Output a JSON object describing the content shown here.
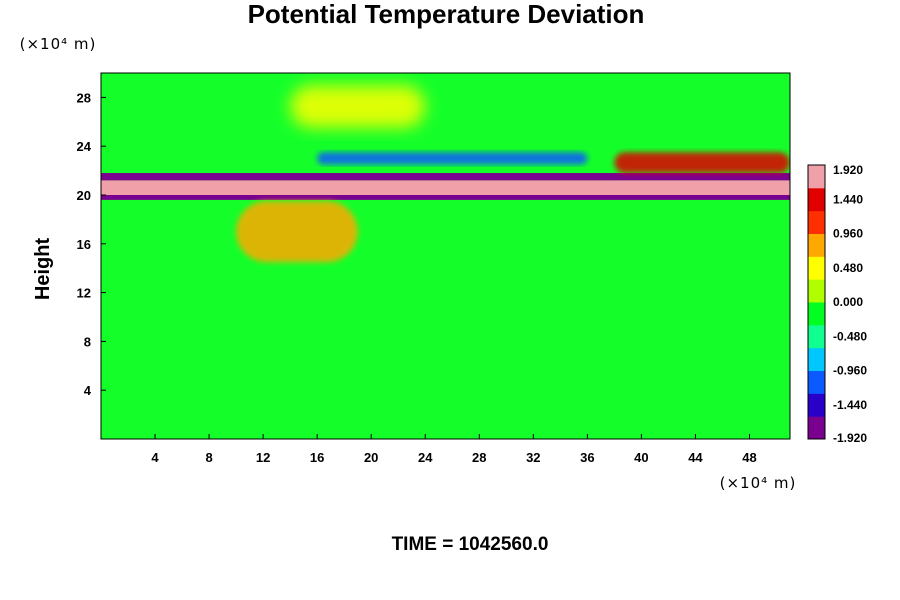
{
  "chart_data": {
    "type": "heatmap",
    "title": "Potential Temperature Deviation",
    "ylabel": "Height",
    "x_unit": "(×10⁴ m)",
    "y_unit": "(×10⁴ m)",
    "xlim": [
      0,
      51
    ],
    "ylim": [
      0,
      30
    ],
    "x_ticks": [
      "4",
      "8",
      "12",
      "16",
      "20",
      "24",
      "28",
      "32",
      "36",
      "40",
      "44",
      "48"
    ],
    "y_ticks": [
      "4",
      "8",
      "12",
      "16",
      "20",
      "24",
      "28"
    ],
    "colorbar": {
      "range": [
        -1.92,
        1.92
      ],
      "labels": [
        "1.920",
        "1.440",
        "0.960",
        "0.480",
        "0.000",
        "-0.480",
        "-0.960",
        "-1.440",
        "-1.920"
      ],
      "colors": [
        "#7a0090",
        "#2800c8",
        "#0a5aff",
        "#00c8ff",
        "#10ff90",
        "#00ff20",
        "#b0ff00",
        "#ffff00",
        "#ffa800",
        "#ff3000",
        "#e00000",
        "#f0a0a8"
      ]
    },
    "features": [
      {
        "name": "positive band",
        "y_range": [
          20.0,
          21.2
        ],
        "value": 1.92
      },
      {
        "name": "negative band below",
        "y_range": [
          19.6,
          20.0
        ],
        "value": -1.92
      },
      {
        "name": "negative band above",
        "y_range": [
          21.2,
          21.8
        ],
        "value": -1.92
      },
      {
        "name": "negative anomaly",
        "x_range": [
          16,
          36
        ],
        "y_range": [
          22.5,
          23.5
        ],
        "value": -1.2
      },
      {
        "name": "positive anomaly",
        "x_range": [
          38,
          51
        ],
        "y_range": [
          21.8,
          23.5
        ],
        "value": 1.4
      },
      {
        "name": "positive anomaly",
        "x_range": [
          10,
          19
        ],
        "y_range": [
          14.5,
          19.5
        ],
        "value": 1.0
      },
      {
        "name": "warm anomaly aloft",
        "x_range": [
          14,
          24
        ],
        "y_range": [
          25.5,
          29
        ],
        "value": 0.45
      }
    ],
    "annotation": "TIME = 1042560.0"
  }
}
